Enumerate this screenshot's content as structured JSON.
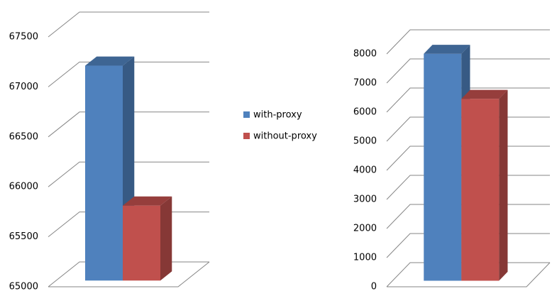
{
  "chart_data": [
    {
      "type": "bar3d",
      "series": [
        {
          "name": "with-proxy",
          "color": "#4f81bd",
          "values": [
            67150
          ]
        },
        {
          "name": "without-proxy",
          "color": "#c0504d",
          "values": [
            65750
          ]
        }
      ],
      "ylim": [
        65000,
        67500
      ],
      "yticks": [
        65000,
        65500,
        66000,
        66500,
        67000,
        67500
      ],
      "grid": true,
      "legend": "right"
    },
    {
      "type": "bar3d",
      "series": [
        {
          "color": "#4f81bd",
          "values": [
            7800
          ]
        },
        {
          "color": "#c0504d",
          "values": [
            6250
          ]
        }
      ],
      "ylim": [
        0,
        8000
      ],
      "yticks": [
        0,
        1000,
        2000,
        3000,
        4000,
        5000,
        6000,
        7000,
        8000
      ],
      "grid": true
    }
  ]
}
